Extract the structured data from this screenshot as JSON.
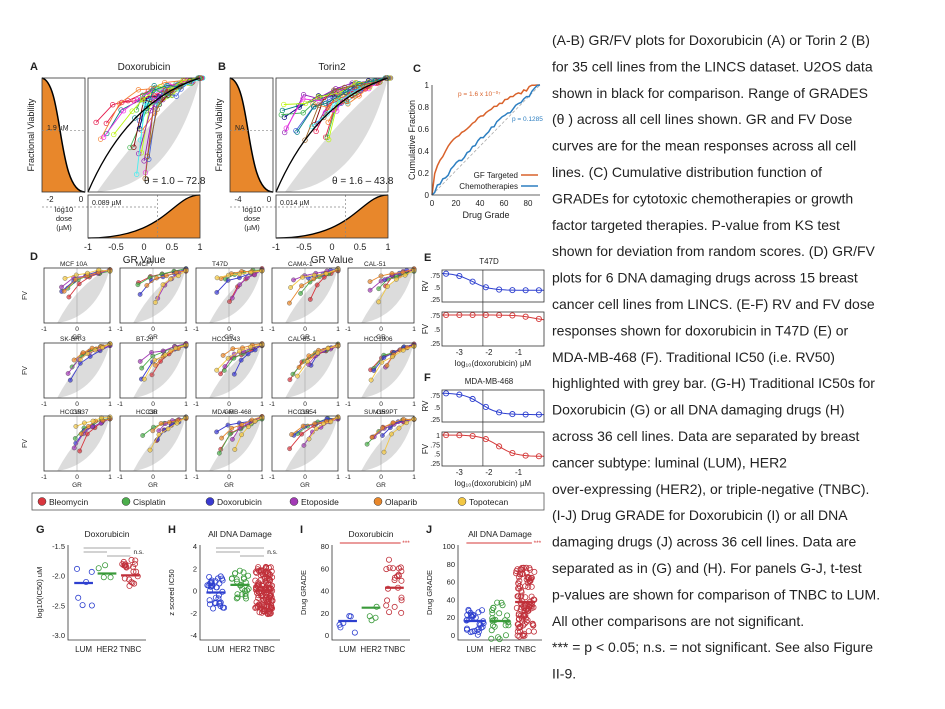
{
  "panels": {
    "A": {
      "label": "A",
      "title": "Doxorubicin",
      "y_label": "Fractional Viability",
      "x_label": "GR Value",
      "dose_label": [
        "log10",
        "dose",
        "(µM)"
      ],
      "left_note": "1.9 µM",
      "bottom_note": "0.089 µM",
      "theta": "θ = 1.0 – 72.8",
      "x_ticks": [
        "-1",
        "-0.5",
        "0",
        "0.5",
        "1"
      ],
      "left_ticks": [
        "-2",
        "0"
      ]
    },
    "B": {
      "label": "B",
      "title": "Torin2",
      "y_label": "Fractional Viability",
      "x_label": "GR Value",
      "dose_label": [
        "log10",
        "dose",
        "(µM)"
      ],
      "left_note": "NA",
      "bottom_note": "0.014 µM",
      "theta": "θ = 1.6 – 43.8",
      "x_ticks": [
        "-1",
        "-0.5",
        "0",
        "0.5",
        "1"
      ],
      "left_ticks": [
        "-4",
        "0"
      ]
    },
    "C": {
      "label": "C",
      "y_label": "Cumulative Fraction",
      "x_label": "Drug Grade",
      "y_ticks": [
        "0",
        "0.2",
        "0.4",
        "0.6",
        "0.8",
        "1"
      ],
      "x_ticks": [
        "0",
        "20",
        "40",
        "60",
        "80"
      ],
      "p_gf": "p = 1.6 x 10⁻⁰⁷",
      "p_chemo": "p = 0.1285",
      "legend": [
        "GF Targeted",
        "Chemotherapies"
      ]
    },
    "D": {
      "label": "D",
      "cells": [
        "MCF 10A",
        "MCF7",
        "T47D",
        "CAMA-1",
        "CAL-51",
        "SK-BR-3",
        "BT-20",
        "HCC1143",
        "CAL-85-1",
        "HCC1806",
        "HCC1937",
        "HCC38",
        "MDA-MB-468",
        "HCC1954",
        "SUM159PT"
      ],
      "y_label": "FV",
      "x_label": "GR",
      "x_ticks": [
        "-1",
        "0",
        "1"
      ],
      "legend": [
        "Bleomycin",
        "Cisplatin",
        "Doxorubicin",
        "Etoposide",
        "Olaparib",
        "Topotecan"
      ]
    },
    "E": {
      "label": "E",
      "title": "T47D",
      "rv_label": "RV",
      "fv_label": "FV",
      "rv_ticks": [
        ".75",
        ".5",
        ".25"
      ],
      "fv_ticks": [
        ".75",
        ".5",
        ".25"
      ],
      "x_ticks": [
        "-3",
        "-2",
        "-1"
      ],
      "x_label": "log₁₀(doxorubicin) µM"
    },
    "F": {
      "label": "F",
      "title": "MDA-MB-468",
      "rv_label": "RV",
      "fv_label": "FV",
      "rv_ticks": [
        ".75",
        ".5",
        ".25"
      ],
      "fv_ticks": [
        "1",
        ".75",
        ".5",
        ".25"
      ],
      "x_ticks": [
        "-3",
        "-2",
        "-1"
      ],
      "x_label": "log₁₀(doxorubicin) µM"
    },
    "G": {
      "label": "G",
      "title": "Doxorubicin",
      "y_label": "log10(IC50) uM",
      "y_ticks": [
        "-1.5",
        "-2.0",
        "-2.5",
        "-3.0"
      ],
      "categories": [
        "LUM",
        "HER2",
        "TNBC"
      ],
      "sig": "n.s."
    },
    "H": {
      "label": "H",
      "title": "All DNA Damage",
      "y_label": "z scored IC50",
      "y_ticks": [
        "4",
        "2",
        "0",
        "-2",
        "-4"
      ],
      "categories": [
        "LUM",
        "HER2",
        "TNBC"
      ],
      "sig": "n.s."
    },
    "I": {
      "label": "I",
      "title": "Doxorubicin",
      "y_label": "Drug GRADE",
      "y_ticks": [
        "80",
        "60",
        "40",
        "20",
        "0"
      ],
      "categories": [
        "LUM",
        "HER2",
        "TNBC"
      ],
      "sig": "***"
    },
    "J": {
      "label": "J",
      "title": "All DNA Damage",
      "y_label": "Drug GRADE",
      "y_ticks": [
        "100",
        "80",
        "60",
        "40",
        "20",
        "0"
      ],
      "categories": [
        "LUM",
        "HER2",
        "TNBC"
      ],
      "sig": "***"
    }
  },
  "caption": [
    "(A-B) GR/FV plots for Doxorubicin (A) or Torin 2 (B)",
    "for 35 cell lines from the LINCS dataset. U2OS data",
    "shown in black for comparison. Range of GRADES",
    "(θ ) across all cell lines shown. GR and FV Dose",
    "curves are for the mean responses across all cell",
    "lines. (C) Cumulative distribution function of",
    "GRADEs for cytotoxic chemotherapies or growth",
    "factor targeted therapies. P-value from KS test",
    "shown for deviation from random scores. (D) GR/FV",
    "plots for 6 DNA damaging drugs across 15 breast",
    "cancer cell lines from LINCS. (E-F) RV and FV dose",
    "responses shown for doxorubicin in T47D (E) or",
    "MDA-MB-468 (F). Traditional IC50 (i.e. RV50)",
    "highlighted with grey bar. (G-H) Traditional IC50s for",
    "Doxorubicin (G) or all DNA damaging drugs (H)",
    "across 36 cell lines. Data are separated by breast",
    "cancer subtype: luminal (LUM), HER2",
    "over-expressing (HER2), or triple-negative (TNBC).",
    "(I-J) Drug GRADE for Doxorubicin (I) or all DNA",
    "damaging drugs (J) across 36 cell lines. Data are",
    "separated as in (G) and (H). For panels G-J, t-test",
    "p-values are shown for comparison of TNBC to LUM.",
    "All other comparisons are not significant.",
    "*** = p < 0.05; n.s. = not significant. See also Figure",
    "II-9."
  ]
}
